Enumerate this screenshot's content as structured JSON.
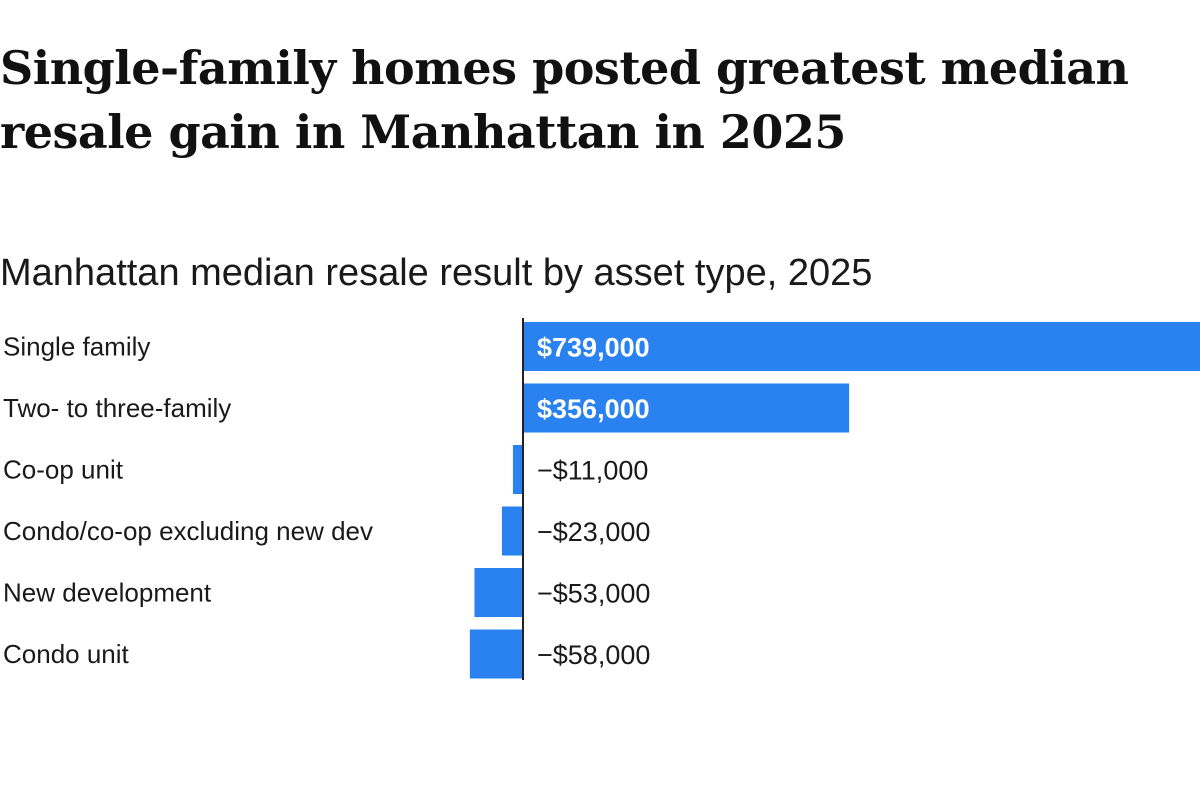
{
  "headline": "Single-family homes posted greatest median resale gain in Manhattan in 2025",
  "chart_data": {
    "type": "bar",
    "orientation": "horizontal",
    "title": "Manhattan median resale result by asset type, 2025",
    "categories": [
      "Single family",
      "Two- to three-family",
      "Co-op unit",
      "Condo/co-op excluding new dev",
      "New development",
      "Condo unit"
    ],
    "values": [
      739000,
      356000,
      -11000,
      -23000,
      -53000,
      -58000
    ],
    "value_labels": [
      "$739,000",
      "$356,000",
      "−$11,000",
      "−$23,000",
      "−$53,000",
      "−$58,000"
    ],
    "bar_color": "#2a82f0",
    "axis_color": "#222222",
    "grid": false,
    "legend": false
  }
}
